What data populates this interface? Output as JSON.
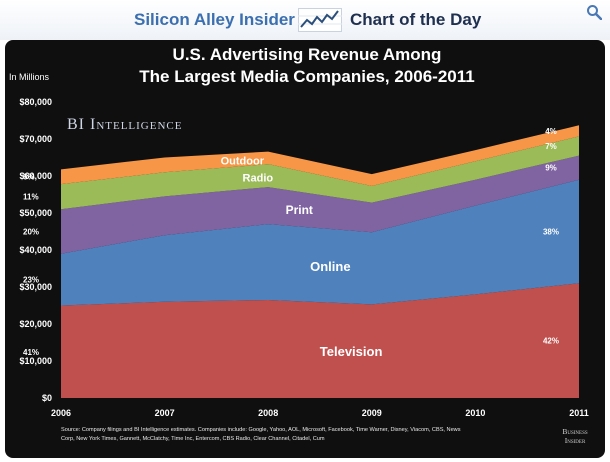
{
  "header": {
    "brand_left": "Silicon Alley Insider",
    "brand_right": "Chart of the Day",
    "logo_icon": "trend-chart-icon",
    "zoom_icon": "magnifier-icon"
  },
  "chart_data": {
    "type": "area",
    "stacked": true,
    "title_line1": "U.S. Advertising Revenue Among",
    "title_line2": "The Largest Media Companies, 2006-2011",
    "ylabel": "In Millions",
    "ylim": [
      0,
      80000
    ],
    "y_ticks": [
      "$0",
      "$10,000",
      "$20,000",
      "$30,000",
      "$40,000",
      "$50,000",
      "$60,000",
      "$70,000",
      "$80,000"
    ],
    "x": [
      "2006",
      "2007",
      "2008",
      "2009",
      "2010",
      "2011"
    ],
    "watermark": "BI Intelligence",
    "series": [
      {
        "name": "Television",
        "color": "#c0504d",
        "values": [
          25000,
          26000,
          26500,
          25300,
          28000,
          31000
        ],
        "pct_start": "41%",
        "pct_end": "42%"
      },
      {
        "name": "Online",
        "color": "#4f81bd",
        "values": [
          14000,
          18000,
          20500,
          19500,
          24000,
          28000
        ],
        "pct_start": "23%",
        "pct_end": "38%"
      },
      {
        "name": "Print",
        "color": "#8064a2",
        "values": [
          12000,
          10500,
          10000,
          8000,
          7000,
          6500
        ],
        "pct_start": "20%",
        "pct_end": "9%"
      },
      {
        "name": "Radio",
        "color": "#9bbb59",
        "values": [
          6800,
          6500,
          6200,
          4500,
          5000,
          5200
        ],
        "pct_start": "11%",
        "pct_end": "7%"
      },
      {
        "name": "Outdoor",
        "color": "#f79646",
        "values": [
          4000,
          4000,
          3400,
          3200,
          3000,
          3000
        ],
        "pct_start": "6%",
        "pct_end": "4%"
      }
    ],
    "source": [
      "Source: Company filings and BI Intelligence estimates. Companies include: Google, Yahoo, AOL, Microsoft, Facebook, Time Warner, Disney, Viacom, CBS, News",
      "Corp, New York Times, Gannett, McClatchy, Time Inc, Entercom, CBS Radio, Clear Channel, Citadel, Cum"
    ],
    "publisher": [
      "Business",
      "Insider"
    ]
  }
}
